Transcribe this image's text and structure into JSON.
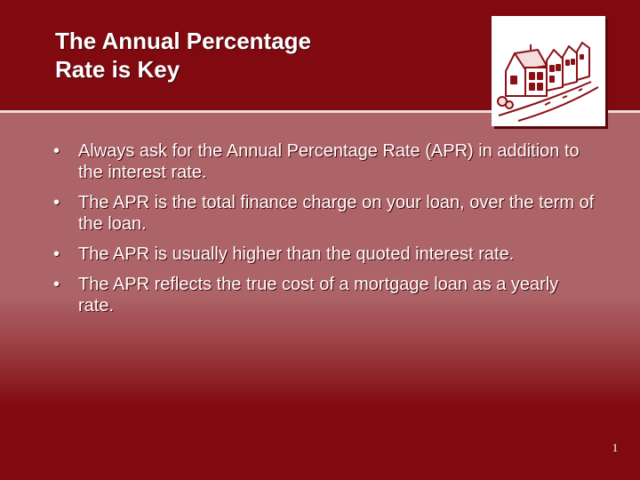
{
  "slide": {
    "title_lines": [
      "The Annual Percentage",
      "Rate is Key"
    ],
    "bullets": [
      "Always ask for the Annual Percentage Rate (APR) in addition to the interest rate.",
      "The APR is the total finance charge on your loan, over the term of the loan.",
      "The APR is usually higher than the quoted interest rate.",
      "The APR reflects the true cost of a mortgage loan as a yearly rate."
    ],
    "bullet_symbol": "•",
    "page_number": "1",
    "clipart": {
      "icon": "street-houses-icon"
    }
  },
  "colors": {
    "header_background": "#800a10",
    "body_background": "#ad6468",
    "divider": "#e9dcdc",
    "text": "#ffffff",
    "clipart_ink": "#8b1016"
  }
}
